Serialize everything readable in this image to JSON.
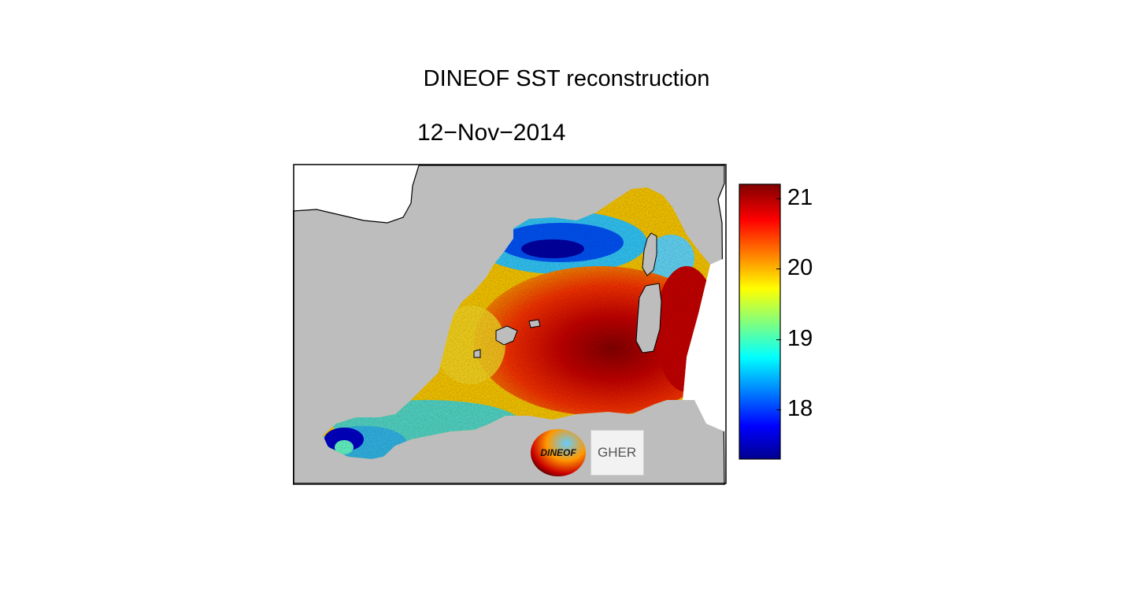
{
  "title": "DINEOF SST reconstruction",
  "date": "12−Nov−2014",
  "colorbar": {
    "min": 17.3,
    "max": 21.2,
    "ticks": [
      {
        "value": 21,
        "label": "21"
      },
      {
        "value": 20,
        "label": "20"
      },
      {
        "value": 19,
        "label": "19"
      },
      {
        "value": 18,
        "label": "18"
      }
    ],
    "colormap": [
      "#00008f",
      "#0000ff",
      "#00ffff",
      "#ffff00",
      "#ff0000",
      "#800000"
    ]
  },
  "colors": {
    "land": "#bdbdbd",
    "outside": "#ffffff",
    "coastline": "#000000"
  },
  "logos": {
    "dineof": "DINEOF",
    "gher": "GHER"
  }
}
